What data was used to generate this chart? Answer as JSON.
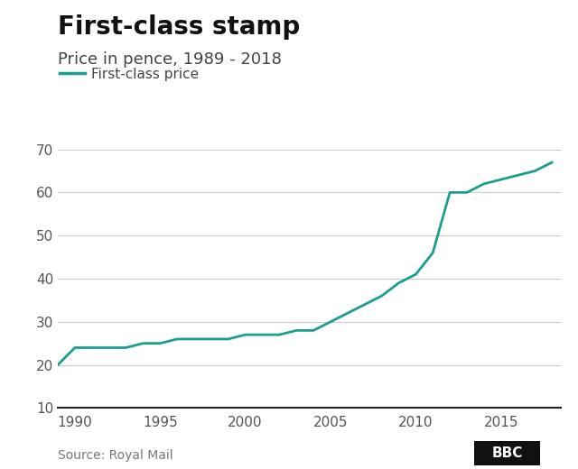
{
  "title": "First-class stamp",
  "subtitle": "Price in pence, 1989 - 2018",
  "legend_label": "First-class price",
  "source": "Source: Royal Mail",
  "line_color": "#1a9e8f",
  "background_color": "#ffffff",
  "grid_color": "#cccccc",
  "years": [
    1989,
    1990,
    1991,
    1992,
    1993,
    1994,
    1995,
    1996,
    1997,
    1998,
    1999,
    2000,
    2001,
    2002,
    2003,
    2004,
    2005,
    2006,
    2007,
    2008,
    2009,
    2010,
    2011,
    2012,
    2013,
    2014,
    2015,
    2016,
    2017,
    2018
  ],
  "prices": [
    20,
    24,
    24,
    24,
    24,
    25,
    25,
    26,
    26,
    26,
    26,
    27,
    27,
    27,
    28,
    28,
    30,
    32,
    34,
    36,
    39,
    41,
    46,
    60,
    60,
    62,
    63,
    64,
    65,
    67
  ],
  "xlim": [
    1989,
    2018.5
  ],
  "ylim": [
    10,
    72
  ],
  "yticks": [
    10,
    20,
    30,
    40,
    50,
    60,
    70
  ],
  "xticks": [
    1990,
    1995,
    2000,
    2005,
    2010,
    2015
  ],
  "linewidth": 2.0,
  "title_fontsize": 20,
  "subtitle_fontsize": 13,
  "tick_fontsize": 11,
  "legend_fontsize": 11,
  "source_fontsize": 10,
  "bbc_fontsize": 11
}
